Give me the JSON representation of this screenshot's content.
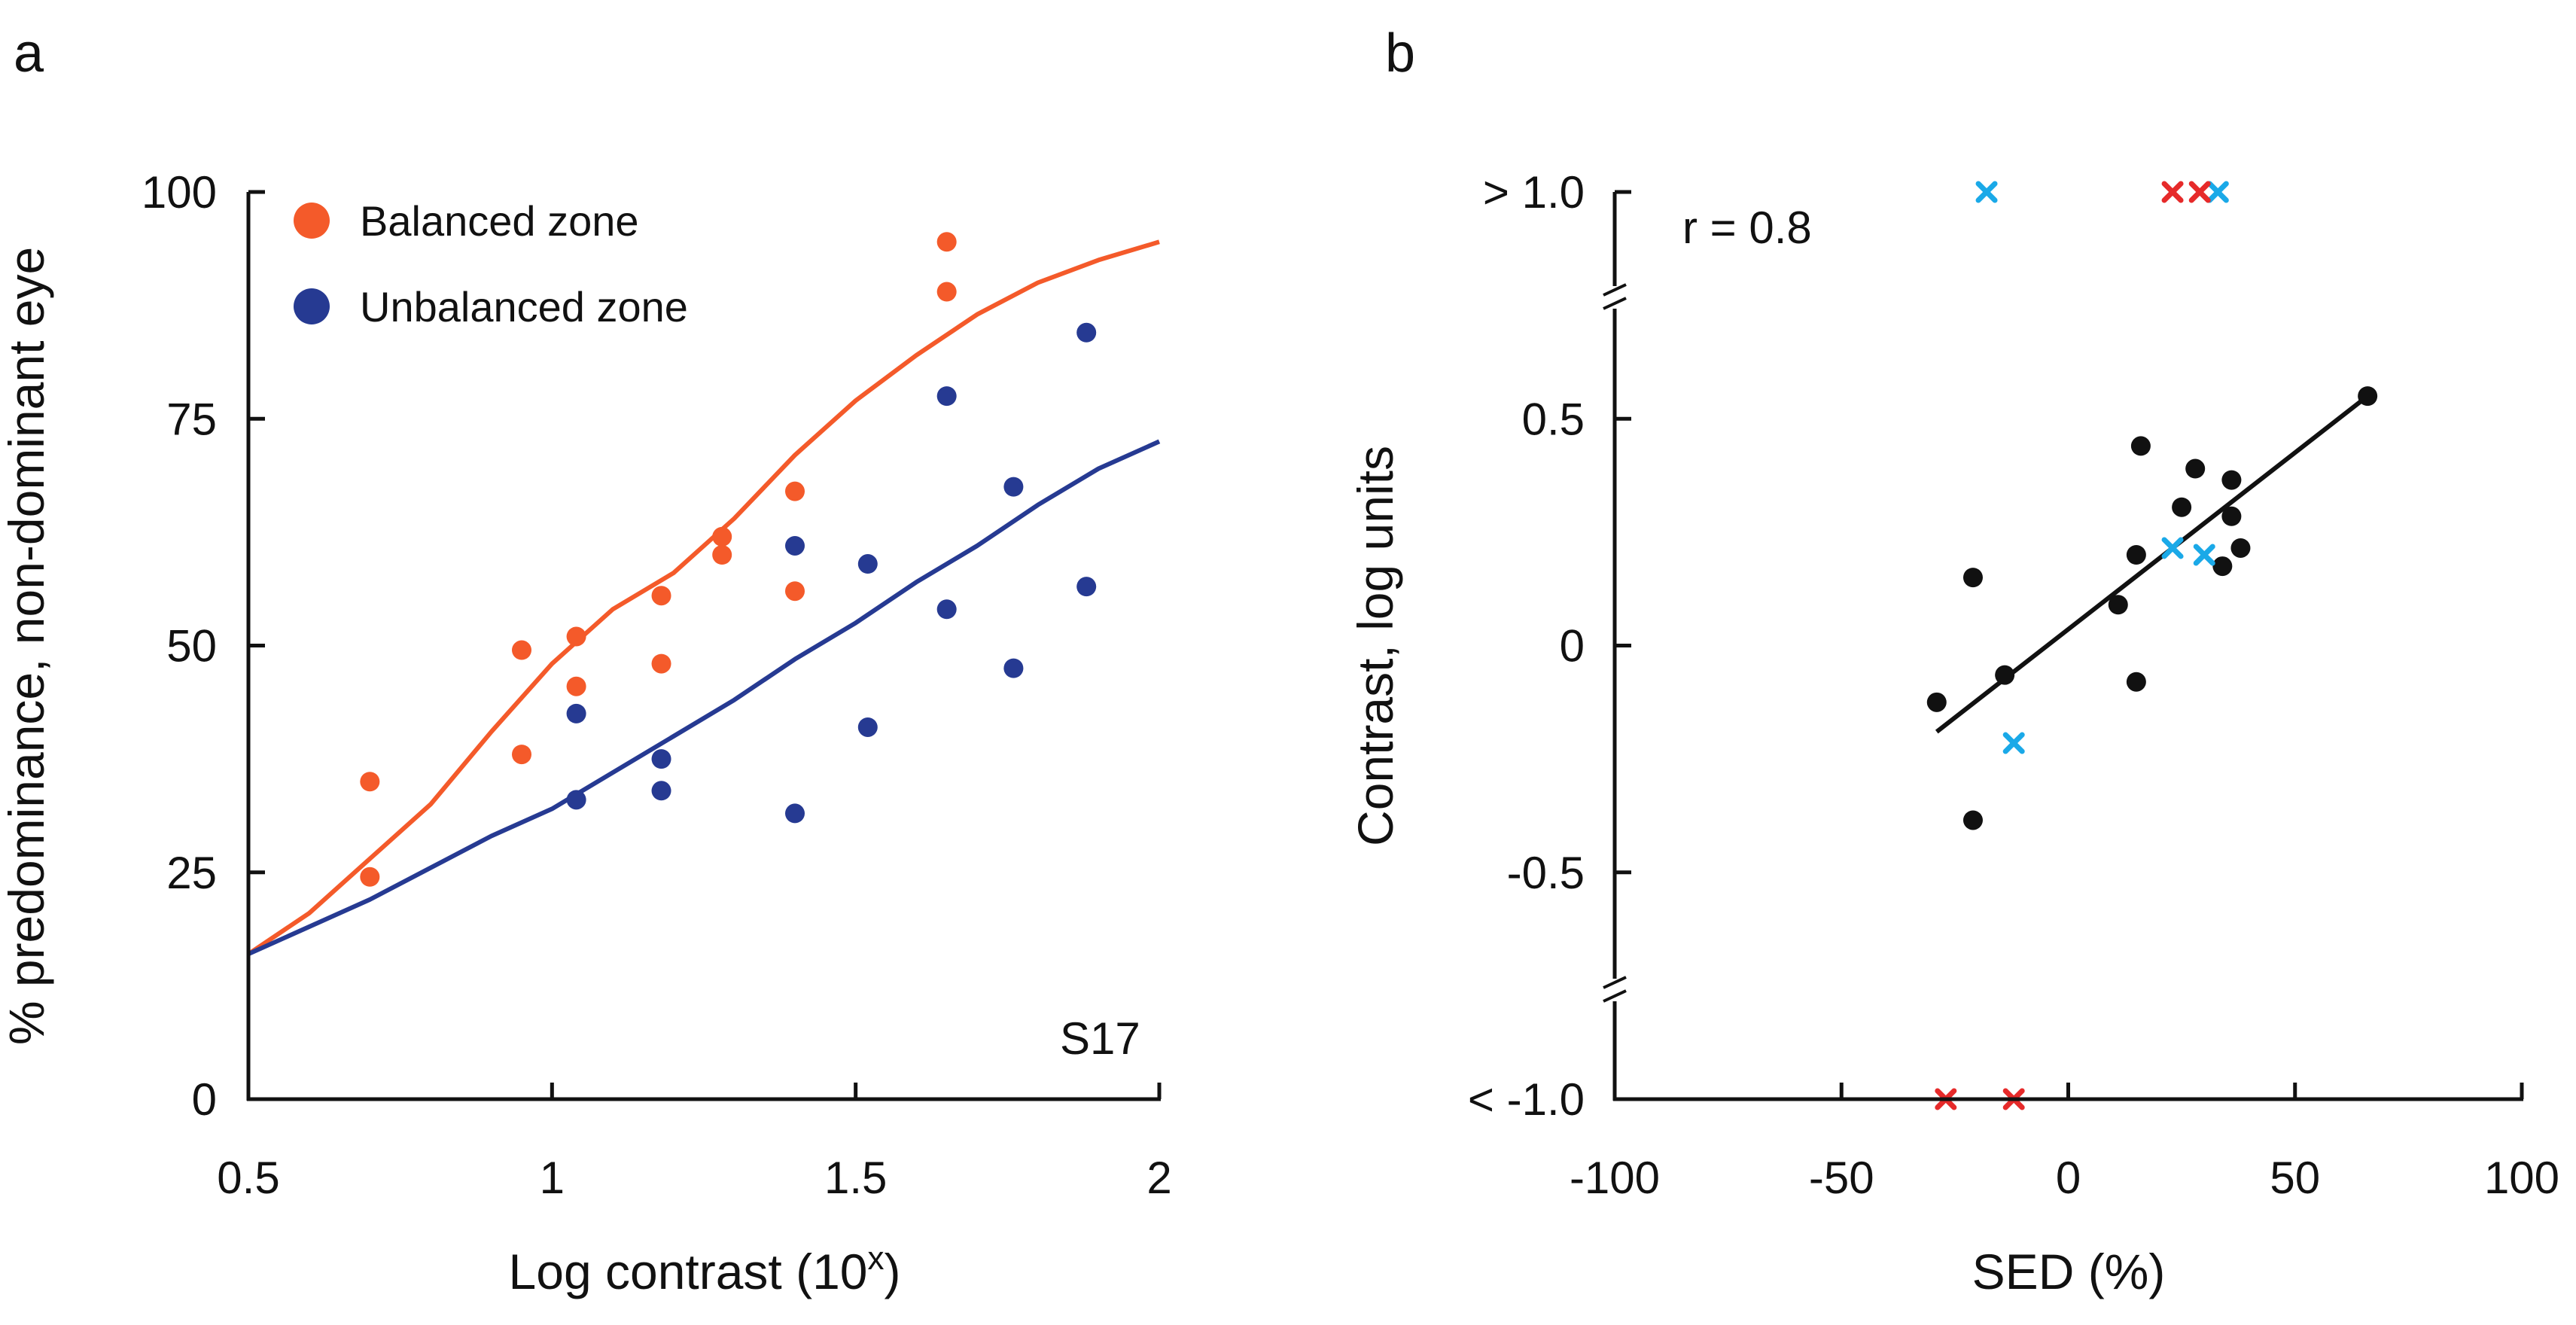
{
  "panels": {
    "a": "a",
    "b": "b"
  },
  "chart_data": [
    {
      "type": "scatter",
      "panel": "a",
      "xlabel_main": "Log contrast (10",
      "xlabel_sup": "x",
      "xlabel_end": ")",
      "ylabel": "% predominance, non-dominant eye",
      "xlim": [
        0.5,
        2
      ],
      "ylim": [
        0,
        100
      ],
      "xticks": [
        0.5,
        1,
        1.5,
        2
      ],
      "xtick_labels": [
        "0.5",
        "1",
        "1.5",
        "2"
      ],
      "yticks": [
        0,
        25,
        50,
        75,
        100
      ],
      "ytick_labels": [
        "0",
        "25",
        "50",
        "75",
        "100"
      ],
      "annotation": "S17",
      "legend_position": "top-left",
      "series": [
        {
          "name": "Balanced zone",
          "color": "#f45a2a",
          "points": [
            [
              0.7,
              35
            ],
            [
              0.7,
              24.5
            ],
            [
              0.95,
              49.5
            ],
            [
              0.95,
              38
            ],
            [
              1.04,
              51
            ],
            [
              1.04,
              45.5
            ],
            [
              1.18,
              55.5
            ],
            [
              1.18,
              48
            ],
            [
              1.28,
              62
            ],
            [
              1.28,
              60
            ],
            [
              1.4,
              67
            ],
            [
              1.4,
              56
            ],
            [
              1.65,
              94.5
            ],
            [
              1.65,
              89
            ]
          ],
          "curve": [
            [
              0.5,
              16
            ],
            [
              0.6,
              20.5
            ],
            [
              0.7,
              26.5
            ],
            [
              0.8,
              32.5
            ],
            [
              0.9,
              40.5
            ],
            [
              1.0,
              48
            ],
            [
              1.1,
              54
            ],
            [
              1.2,
              58
            ],
            [
              1.3,
              64
            ],
            [
              1.4,
              71
            ],
            [
              1.5,
              77
            ],
            [
              1.6,
              82
            ],
            [
              1.7,
              86.5
            ],
            [
              1.8,
              90
            ],
            [
              1.9,
              92.5
            ],
            [
              2.0,
              94.5
            ]
          ]
        },
        {
          "name": "Unbalanced zone",
          "color": "#263a92",
          "points": [
            [
              1.04,
              42.5
            ],
            [
              1.04,
              33
            ],
            [
              1.18,
              37.5
            ],
            [
              1.18,
              34
            ],
            [
              1.4,
              61
            ],
            [
              1.4,
              31.5
            ],
            [
              1.52,
              59
            ],
            [
              1.52,
              41
            ],
            [
              1.65,
              77.5
            ],
            [
              1.65,
              54
            ],
            [
              1.76,
              67.5
            ],
            [
              1.76,
              47.5
            ],
            [
              1.88,
              84.5
            ],
            [
              1.88,
              56.5
            ]
          ],
          "curve": [
            [
              0.5,
              16
            ],
            [
              0.6,
              19
            ],
            [
              0.7,
              22
            ],
            [
              0.8,
              25.5
            ],
            [
              0.9,
              29
            ],
            [
              1.0,
              32
            ],
            [
              1.1,
              36
            ],
            [
              1.2,
              40
            ],
            [
              1.3,
              44
            ],
            [
              1.4,
              48.5
            ],
            [
              1.5,
              52.5
            ],
            [
              1.6,
              57
            ],
            [
              1.7,
              61
            ],
            [
              1.8,
              65.5
            ],
            [
              1.9,
              69.5
            ],
            [
              2.0,
              72.5
            ]
          ]
        }
      ]
    },
    {
      "type": "scatter",
      "panel": "b",
      "xlabel": "SED (%)",
      "ylabel": "Contrast, log units",
      "xlim": [
        -100,
        100
      ],
      "ylim": [
        -1.0,
        1.0
      ],
      "xticks": [
        -100,
        -50,
        0,
        50,
        100
      ],
      "xtick_labels": [
        "-100",
        "-50",
        "0",
        "50",
        "100"
      ],
      "yticks": [
        -1.0,
        -0.5,
        0,
        0.5,
        1.0
      ],
      "ytick_labels": [
        "< -1.0",
        "-0.5",
        "0",
        "0.5",
        "> 1.0"
      ],
      "axis_breaks_y": [
        -0.75,
        0.75
      ],
      "annotation": "r = 0.8",
      "series": [
        {
          "name": "black dots",
          "color": "#111111",
          "marker": "dot",
          "points": [
            [
              -29,
              -0.125
            ],
            [
              -21,
              0.15
            ],
            [
              -21,
              -0.385
            ],
            [
              -14,
              -0.065
            ],
            [
              11,
              0.09
            ],
            [
              15,
              0.2
            ],
            [
              15,
              -0.08
            ],
            [
              16,
              0.44
            ],
            [
              25,
              0.305
            ],
            [
              28,
              0.39
            ],
            [
              34,
              0.175
            ],
            [
              36,
              0.365
            ],
            [
              36,
              0.285
            ],
            [
              38,
              0.215
            ],
            [
              66,
              0.55
            ]
          ]
        },
        {
          "name": "cyan crosses",
          "color": "#1aa9e8",
          "marker": "x",
          "points": [
            [
              -18,
              1.0
            ],
            [
              -12,
              -0.215
            ],
            [
              23,
              0.215
            ],
            [
              30,
              0.2
            ],
            [
              33,
              1.0
            ]
          ]
        },
        {
          "name": "red crosses",
          "color": "#e62a2a",
          "marker": "x",
          "points": [
            [
              23,
              1.0
            ],
            [
              29,
              1.0
            ],
            [
              -27,
              -1.0
            ],
            [
              -12,
              -1.0
            ]
          ]
        }
      ],
      "fit_line": [
        [
          -29,
          -0.19
        ],
        [
          66,
          0.55
        ]
      ]
    }
  ]
}
